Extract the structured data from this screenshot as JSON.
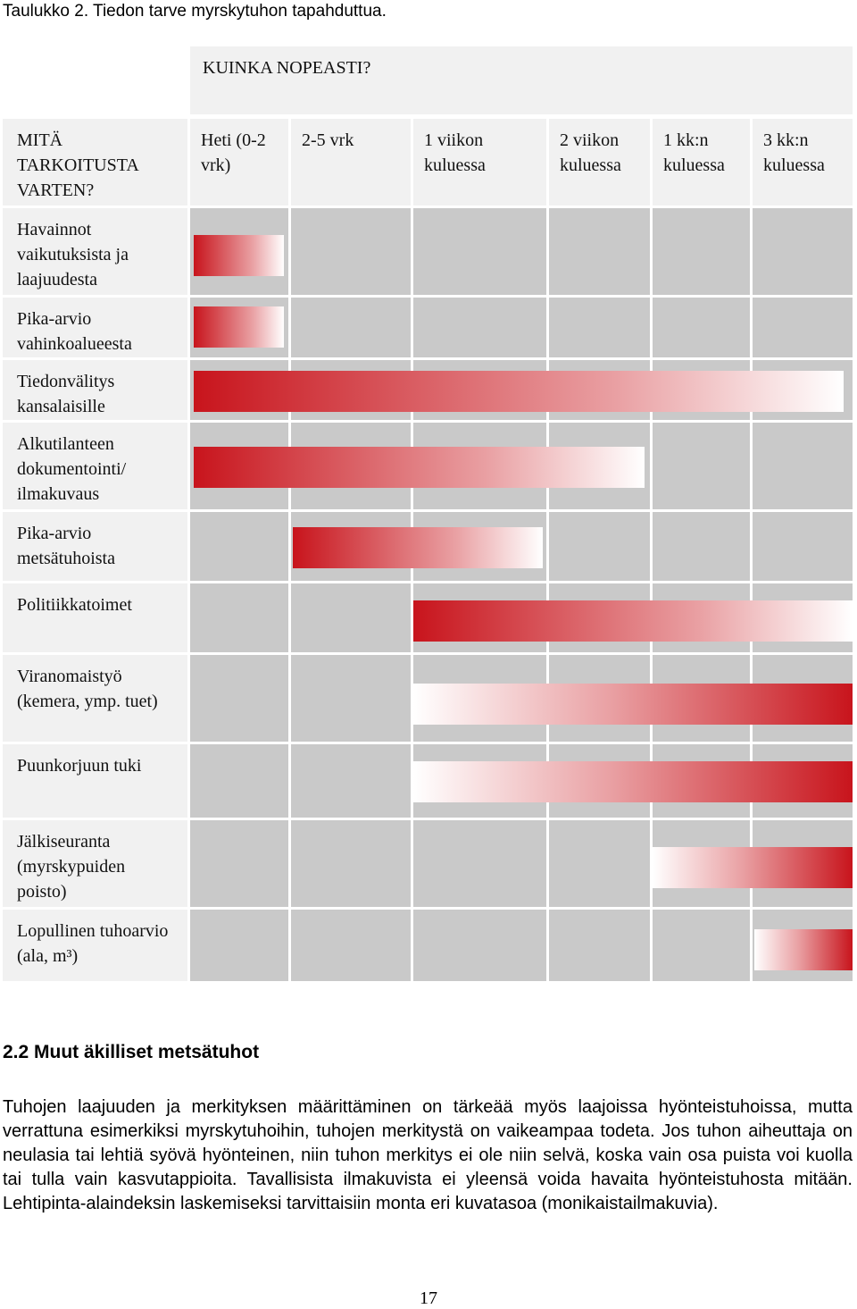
{
  "caption": "Taulukko 2. Tiedon tarve myrskytuhon tapahduttua.",
  "table": {
    "title": "KUINKA NOPEASTI?",
    "corner": "MITÄ TARKOITUSTA VARTEN?",
    "columns": [
      "Heti (0-2 vrk)",
      "2-5 vrk",
      "1 viikon kuluessa",
      "2 viikon kuluessa",
      "1 kk:n kuluessa",
      "3 kk:n kuluessa"
    ],
    "rows": [
      "Havainnot vaikutuksista ja laajuudesta",
      "Pika-arvio vahinkoalueesta",
      "Tiedonvälitys kansalaisille",
      "Alkutilanteen dokumentointi/ ilmakuvaus",
      "Pika-arvio metsätuhoista",
      "Politiikkatoimet",
      "Viranomaistyö (kemera, ymp. tuet)",
      "Puunkorjuun tuki",
      "Jälkiseuranta (myrskypuiden poisto)",
      "Lopullinen tuhoarvio (ala, m³)"
    ]
  },
  "section": {
    "heading": "2.2 Muut äkilliset metsätuhot",
    "paragraph": "Tuhojen laajuuden ja merkityksen määrittäminen on tärkeää myös laajoissa hyönteistuhoissa, mutta verrattuna esimerkiksi myrskytuhoihin, tuhojen merkitystä on vaikeampaa todeta. Jos tuhon aiheuttaja on neulasia tai lehtiä syövä hyönteinen, niin tuhon merkitys ei ole niin selvä, koska vain osa puista voi kuolla tai tulla vain kasvutappioita. Tavallisista ilmakuvista ei yleensä voida havaita hyönteistuhosta mitään. Lehtipinta-alaindeksin laskemiseksi tarvittaisiin monta eri kuvatasoa (monikaistailmakuvia)."
  },
  "page_number": "17"
}
